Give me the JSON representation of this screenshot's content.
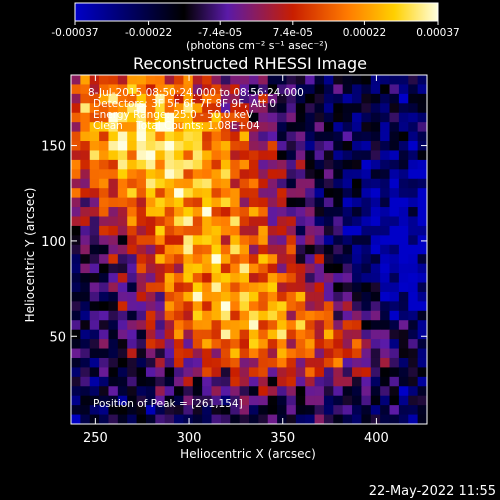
{
  "chart_data": {
    "type": "heatmap",
    "title": "Reconstructed RHESSI Image",
    "xlabel": "Heliocentric X (arcsec)",
    "ylabel": "Heliocentric Y (arcsec)",
    "xlim": [
      237,
      427
    ],
    "ylim": [
      4,
      187
    ],
    "x_ticks": [
      250,
      300,
      350,
      400
    ],
    "y_ticks": [
      50,
      100,
      150
    ],
    "x_tick_labels": [
      "250",
      "300",
      "350",
      "400"
    ],
    "y_tick_labels": [
      "50",
      "100",
      "150"
    ],
    "colorbar": {
      "min": -0.00037,
      "max": 0.00037,
      "tick_values": [
        -0.00037,
        -0.00022,
        -7.4e-05,
        7.4e-05,
        0.00022,
        0.00037
      ],
      "tick_labels": [
        "-0.00037",
        "-0.00022",
        "-7.4e-05",
        "7.4e-05",
        "0.00022",
        "0.00037"
      ],
      "units_label": "(photons cm⁻² s⁻¹ asec⁻²)",
      "colors": [
        "#0000c8",
        "#000000",
        "#5a1aa8",
        "#c81e00",
        "#ff7a00",
        "#ffd000",
        "#ffffe0"
      ]
    },
    "annotations": [
      "8-Jul-2015 08:50:24.000 to 08:56:24.000",
      "Detectors: 3F 5F 6F 7F 8F 9F, Att 0",
      "Energy Range: 25.0 - 50.0 keV",
      "Clean    Total Counts: 1.08E+04"
    ],
    "peak_label": "Position of Peak = [261,154]",
    "peak": [
      261,
      154
    ],
    "grid_size": [
      38,
      37
    ],
    "timestamp": "22-May-2022 11:55"
  }
}
